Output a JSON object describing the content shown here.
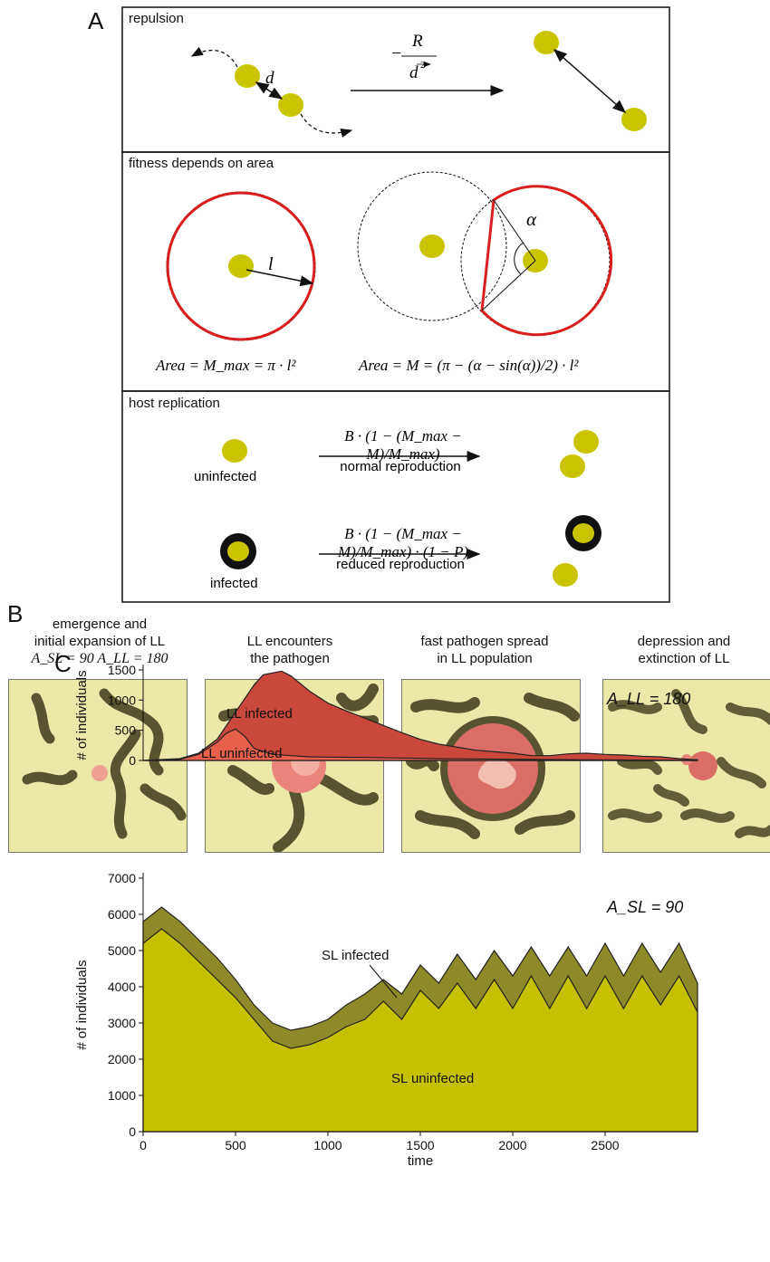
{
  "panel_a": {
    "label": "A",
    "repulsion": {
      "title": "repulsion",
      "d_label": "d",
      "force_R": "R",
      "force_minus": "−",
      "force_d": "d",
      "force_exp": "2"
    },
    "fitness": {
      "title": "fitness depends on area",
      "l_label": "l",
      "alpha_label": "α",
      "eq_left": "Area = M_max = π · l²",
      "eq_right": "Area = M = (π − (α − sin(α))/2) · l²"
    },
    "replication": {
      "title": "host replication",
      "uninfected_label": "uninfected",
      "infected_label": "infected",
      "normal_label": "normal reproduction",
      "reduced_label": "reduced reproduction",
      "eq_normal": "B · (1 − (M_max − M)/M_max)",
      "eq_reduced": "B · (1 − (M_max − M)/M_max) · (1 − P)"
    }
  },
  "panel_b": {
    "label": "B",
    "snapshots": [
      {
        "caption_1": "emergence and",
        "caption_2": "initial expansion of LL",
        "caption_3": "A_SL = 90  A_LL = 180"
      },
      {
        "caption_1": "LL encounters",
        "caption_2": "the pathogen",
        "caption_3": ""
      },
      {
        "caption_1": "fast pathogen spread",
        "caption_2": "in LL population",
        "caption_3": ""
      },
      {
        "caption_1": "depression and",
        "caption_2": "extinction of LL",
        "caption_3": ""
      }
    ]
  },
  "panel_c": {
    "label": "C",
    "colors": {
      "ll_infected": "#c9483a",
      "ll_uninfected": "#e8604a",
      "sl_infected": "#8e8a2a",
      "sl_uninfected": "#c7c000"
    },
    "top_annotation": "A_LL = 180",
    "bottom_annotation": "A_SL = 90"
  },
  "chart_data": [
    {
      "type": "area",
      "ylabel": "# of individuals",
      "xlabel": "",
      "xlim": [
        0,
        3000
      ],
      "ylim": [
        0,
        1500
      ],
      "yticks": [
        0,
        500,
        1000,
        1500
      ],
      "series": [
        {
          "name": "LL infected",
          "x": [
            0,
            200,
            300,
            400,
            500,
            600,
            650,
            700,
            750,
            800,
            900,
            1000,
            1100,
            1200,
            1300,
            1400,
            1500,
            1600,
            1800,
            2000,
            2100,
            2200,
            2300,
            2400,
            2500,
            2600,
            2700,
            2800,
            2900,
            3000
          ],
          "values": [
            0,
            30,
            120,
            350,
            800,
            1250,
            1420,
            1450,
            1480,
            1400,
            1150,
            950,
            820,
            700,
            580,
            460,
            350,
            270,
            170,
            120,
            80,
            80,
            110,
            120,
            100,
            90,
            70,
            60,
            30,
            10
          ]
        },
        {
          "name": "LL uninfected",
          "x": [
            0,
            200,
            300,
            400,
            450,
            500,
            550,
            600,
            700,
            800,
            900,
            1000,
            1200,
            1400,
            1600,
            1800,
            2000,
            2200,
            2400,
            2600,
            2800,
            3000
          ],
          "values": [
            0,
            20,
            100,
            300,
            450,
            520,
            400,
            200,
            100,
            80,
            60,
            55,
            50,
            40,
            30,
            25,
            20,
            15,
            10,
            8,
            5,
            0
          ]
        }
      ]
    },
    {
      "type": "area",
      "ylabel": "# of individuals",
      "xlabel": "time",
      "xlim": [
        0,
        3000
      ],
      "ylim": [
        0,
        7000
      ],
      "xticks": [
        0,
        500,
        1000,
        1500,
        2000,
        2500
      ],
      "yticks": [
        0,
        1000,
        2000,
        3000,
        4000,
        5000,
        6000,
        7000
      ],
      "series": [
        {
          "name": "SL infected",
          "x": [
            0,
            100,
            200,
            300,
            400,
            500,
            600,
            700,
            800,
            900,
            1000,
            1100,
            1200,
            1300,
            1400,
            1500,
            1600,
            1700,
            1800,
            1900,
            2000,
            2100,
            2200,
            2300,
            2400,
            2500,
            2600,
            2700,
            2800,
            2900,
            3000
          ],
          "values": [
            5800,
            6200,
            5800,
            5300,
            4800,
            4200,
            3500,
            3000,
            2800,
            2900,
            3100,
            3500,
            3800,
            4200,
            3800,
            4600,
            4100,
            4900,
            4200,
            5000,
            4300,
            5100,
            4300,
            5100,
            4300,
            5200,
            4300,
            5200,
            4400,
            5200,
            4100
          ]
        },
        {
          "name": "SL uninfected",
          "x": [
            0,
            100,
            200,
            300,
            400,
            500,
            600,
            700,
            800,
            900,
            1000,
            1100,
            1200,
            1300,
            1400,
            1500,
            1600,
            1700,
            1800,
            1900,
            2000,
            2100,
            2200,
            2300,
            2400,
            2500,
            2600,
            2700,
            2800,
            2900,
            3000
          ],
          "values": [
            5200,
            5600,
            5200,
            4700,
            4200,
            3700,
            3100,
            2500,
            2300,
            2400,
            2600,
            2900,
            3100,
            3600,
            3100,
            3900,
            3400,
            4100,
            3400,
            4200,
            3400,
            4300,
            3400,
            4300,
            3400,
            4300,
            3400,
            4300,
            3500,
            4300,
            3300
          ]
        }
      ]
    }
  ]
}
